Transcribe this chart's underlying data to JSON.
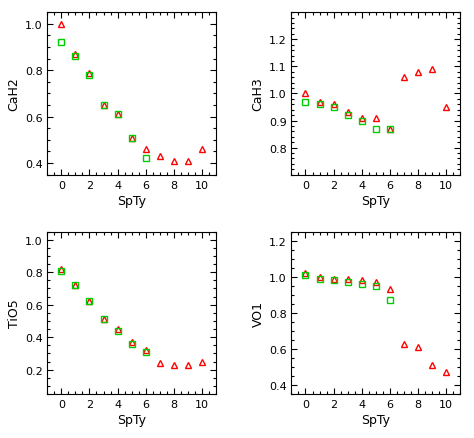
{
  "panels": [
    {
      "ylabel": "CaH2",
      "xlabel": "SpTy",
      "xlim": [
        -1,
        11
      ],
      "ylim": [
        0.35,
        1.05
      ],
      "yticks": [
        0.4,
        0.6,
        0.8,
        1.0
      ],
      "xticks": [
        0,
        2,
        4,
        6,
        8,
        10
      ],
      "red_x": [
        0,
        1,
        2,
        3,
        4,
        5,
        6,
        7,
        8,
        9,
        10
      ],
      "red_y": [
        1.0,
        0.87,
        0.79,
        0.65,
        0.61,
        0.51,
        0.46,
        0.43,
        0.41,
        0.41,
        0.46
      ],
      "green_x": [
        0,
        1,
        2,
        3,
        4,
        5,
        6
      ],
      "green_y": [
        0.92,
        0.86,
        0.78,
        0.65,
        0.61,
        0.51,
        0.42
      ]
    },
    {
      "ylabel": "CaH3",
      "xlabel": "SpTy",
      "xlim": [
        -1,
        11
      ],
      "ylim": [
        0.7,
        1.3
      ],
      "yticks": [
        0.8,
        0.9,
        1.0,
        1.1,
        1.2
      ],
      "xticks": [
        0,
        2,
        4,
        6,
        8,
        10
      ],
      "red_x": [
        0,
        1,
        2,
        3,
        4,
        5,
        6,
        7,
        8,
        9,
        10
      ],
      "red_y": [
        1.0,
        0.97,
        0.96,
        0.93,
        0.91,
        0.91,
        0.87,
        1.06,
        1.08,
        1.09,
        0.95
      ],
      "green_x": [
        0,
        1,
        2,
        3,
        4,
        5,
        6
      ],
      "green_y": [
        0.97,
        0.96,
        0.95,
        0.92,
        0.9,
        0.87,
        0.87
      ]
    },
    {
      "ylabel": "TiO5",
      "xlabel": "SpTy",
      "xlim": [
        -1,
        11
      ],
      "ylim": [
        0.05,
        1.05
      ],
      "yticks": [
        0.2,
        0.4,
        0.6,
        0.8,
        1.0
      ],
      "xticks": [
        0,
        2,
        4,
        6,
        8,
        10
      ],
      "red_x": [
        0,
        1,
        2,
        3,
        4,
        5,
        6,
        7,
        8,
        9,
        10
      ],
      "red_y": [
        0.82,
        0.72,
        0.62,
        0.51,
        0.45,
        0.37,
        0.32,
        0.24,
        0.23,
        0.23,
        0.25
      ],
      "green_x": [
        0,
        1,
        2,
        3,
        4,
        5,
        6
      ],
      "green_y": [
        0.81,
        0.72,
        0.62,
        0.51,
        0.44,
        0.36,
        0.31
      ]
    },
    {
      "ylabel": "VO1",
      "xlabel": "SpTy",
      "xlim": [
        -1,
        11
      ],
      "ylim": [
        0.35,
        1.25
      ],
      "yticks": [
        0.4,
        0.6,
        0.8,
        1.0,
        1.2
      ],
      "xticks": [
        0,
        2,
        4,
        6,
        8,
        10
      ],
      "red_x": [
        0,
        1,
        2,
        3,
        4,
        5,
        6,
        7,
        8,
        9,
        10
      ],
      "red_y": [
        1.02,
        1.0,
        0.99,
        0.99,
        0.98,
        0.97,
        0.93,
        0.63,
        0.61,
        0.51,
        0.47
      ],
      "green_x": [
        0,
        1,
        2,
        3,
        4,
        5,
        6
      ],
      "green_y": [
        1.01,
        0.99,
        0.98,
        0.97,
        0.96,
        0.95,
        0.87
      ]
    }
  ],
  "red_color": "#FF0000",
  "green_color": "#00CC00",
  "marker_red": "^",
  "marker_green": "s",
  "markersize_red": 5,
  "markersize_green": 4,
  "background": "#FFFFFF",
  "fig_bg": "#FFFFFF",
  "tick_labelsize": 8,
  "axis_labelsize": 9
}
